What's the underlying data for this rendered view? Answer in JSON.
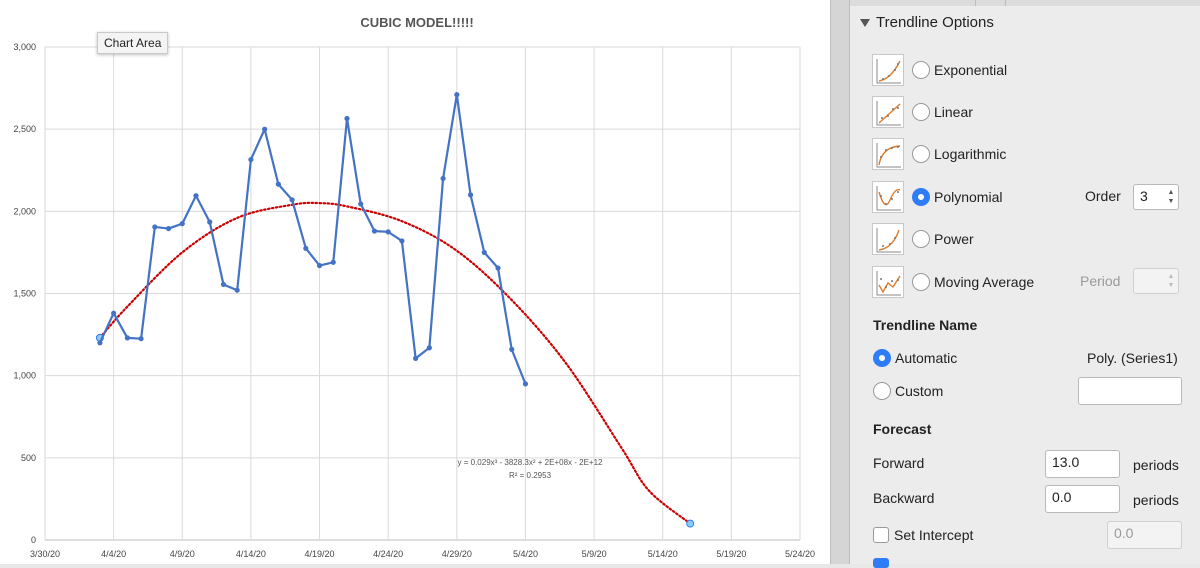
{
  "chart_data": {
    "type": "line",
    "title": "CUBIC MODEL!!!!!",
    "xlabel": "",
    "ylabel": "",
    "ylim": [
      0,
      3000
    ],
    "y_ticks": [
      "0",
      "500",
      "1,000",
      "1,500",
      "2,000",
      "2,500",
      "3,000"
    ],
    "x_ticks": [
      "3/30/20",
      "4/4/20",
      "4/9/20",
      "4/14/20",
      "4/19/20",
      "4/24/20",
      "4/29/20",
      "5/4/20",
      "5/9/20",
      "5/14/20",
      "5/19/20",
      "5/24/20"
    ],
    "xlim": [
      "3/30/20",
      "5/24/20"
    ],
    "grid": true,
    "series": [
      {
        "color": "#4472c4",
        "x": [
          "4/3/20",
          "4/4/20",
          "4/5/20",
          "4/6/20",
          "4/7/20",
          "4/8/20",
          "4/9/20",
          "4/10/20",
          "4/11/20",
          "4/12/20",
          "4/13/20",
          "4/14/20",
          "4/15/20",
          "4/16/20",
          "4/17/20",
          "4/18/20",
          "4/19/20",
          "4/20/20",
          "4/21/20",
          "4/22/20",
          "4/23/20",
          "4/24/20",
          "4/25/20",
          "4/26/20",
          "4/27/20",
          "4/28/20",
          "4/29/20",
          "4/30/20",
          "5/1/20",
          "5/2/20",
          "5/3/20",
          "5/4/20"
        ],
        "y": [
          1200,
          1380,
          1230,
          1225,
          1905,
          1895,
          1925,
          2095,
          1935,
          1555,
          1520,
          2315,
          2500,
          2165,
          2070,
          1775,
          1670,
          1690,
          2565,
          2045,
          1880,
          1875,
          1820,
          1105,
          1170,
          2200,
          2710,
          2100,
          1750,
          1655,
          1160,
          950
        ]
      }
    ],
    "trendline": {
      "type": "polynomial",
      "color": "#cc0000",
      "style": "dotted",
      "equation": "y = 0.029x³ - 3828.3x² + 2E+08x - 2E+12",
      "r_squared": "R² = 0.2953",
      "x": [
        "4/3/20",
        "4/5/20",
        "4/9/20",
        "4/13/20",
        "4/17/20",
        "4/19/20",
        "4/21/20",
        "4/25/20",
        "4/29/20",
        "5/3/20",
        "5/7/20",
        "5/11/20",
        "5/13/20",
        "5/16/20"
      ],
      "y": [
        1230,
        1420,
        1750,
        1960,
        2040,
        2050,
        2030,
        1940,
        1760,
        1460,
        1070,
        560,
        300,
        100
      ]
    }
  },
  "tooltip": {
    "text": "Chart Area"
  },
  "pane": {
    "section_title": "Trendline Options",
    "options": [
      {
        "label": "Exponential",
        "selected": false,
        "icon": "exponential-trend-icon"
      },
      {
        "label": "Linear",
        "selected": false,
        "icon": "linear-trend-icon"
      },
      {
        "label": "Logarithmic",
        "selected": false,
        "icon": "logarithmic-trend-icon"
      },
      {
        "label": "Polynomial",
        "selected": true,
        "icon": "polynomial-trend-icon"
      },
      {
        "label": "Power",
        "selected": false,
        "icon": "power-trend-icon"
      },
      {
        "label": "Moving Average",
        "selected": false,
        "icon": "moving-average-trend-icon"
      }
    ],
    "order_label": "Order",
    "order_value": "3",
    "period_label": "Period",
    "period_value": "",
    "trendline_name_header": "Trendline Name",
    "automatic_label": "Automatic",
    "automatic_value": "Poly. (Series1)",
    "custom_label": "Custom",
    "custom_value": "",
    "forecast_header": "Forecast",
    "forward_label": "Forward",
    "forward_value": "13.0",
    "backward_label": "Backward",
    "backward_value": "0.0",
    "periods_label": "periods",
    "set_intercept_label": "Set Intercept",
    "intercept_value": "0.0"
  }
}
